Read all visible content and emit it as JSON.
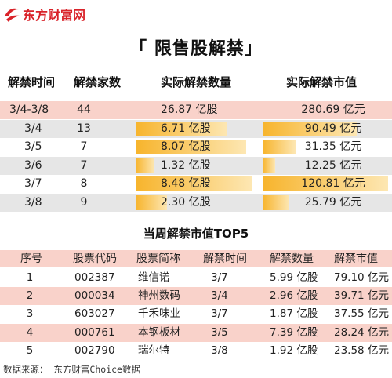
{
  "brand": {
    "name": "东方财富网"
  },
  "title": "「 限售股解禁」",
  "table1": {
    "headers": [
      "解禁时间",
      "解禁家数",
      "实际解禁数量",
      "实际解禁市值"
    ],
    "rows": [
      {
        "date": "3/4-3/8",
        "count": "44",
        "shares": "26.87 亿股",
        "value": "280.69 亿元",
        "shares_fill": 0.0,
        "value_fill": 0.0
      },
      {
        "date": "3/4",
        "count": "13",
        "shares": "6.71 亿股",
        "value": "90.49 亿元",
        "shares_fill": 0.79,
        "value_fill": 0.75
      },
      {
        "date": "3/5",
        "count": "7",
        "shares": "8.07 亿股",
        "value": "31.35 亿元",
        "shares_fill": 0.95,
        "value_fill": 0.26
      },
      {
        "date": "3/6",
        "count": "7",
        "shares": "1.32 亿股",
        "value": "12.25 亿元",
        "shares_fill": 0.16,
        "value_fill": 0.1
      },
      {
        "date": "3/7",
        "count": "8",
        "shares": "8.48 亿股",
        "value": "120.81 亿元",
        "shares_fill": 1.0,
        "value_fill": 1.0
      },
      {
        "date": "3/8",
        "count": "9",
        "shares": "2.30 亿股",
        "value": "25.79 亿元",
        "shares_fill": 0.27,
        "value_fill": 0.21
      }
    ]
  },
  "table2": {
    "title": "当周解禁市值TOP5",
    "headers": [
      "序号",
      "股票代码",
      "股票简称",
      "解禁时间",
      "解禁数量",
      "解禁市值"
    ],
    "rows": [
      {
        "no": "1",
        "code": "002387",
        "name": "维信诺",
        "date": "3/7",
        "shares": "5.99 亿股",
        "value": "79.10 亿元"
      },
      {
        "no": "2",
        "code": "000034",
        "name": "神州数码",
        "date": "3/4",
        "shares": "2.96 亿股",
        "value": "39.71 亿元"
      },
      {
        "no": "3",
        "code": "603027",
        "name": "千禾味业",
        "date": "3/7",
        "shares": "1.87 亿股",
        "value": "37.55 亿元"
      },
      {
        "no": "4",
        "code": "000761",
        "name": "本钢板材",
        "date": "3/5",
        "shares": "7.39 亿股",
        "value": "28.24 亿元"
      },
      {
        "no": "5",
        "code": "002790",
        "name": "瑞尔特",
        "date": "3/8",
        "shares": "1.92 亿股",
        "value": "23.58 亿元"
      }
    ]
  },
  "footer": "数据来源： 东方财富Choice数据",
  "colors": {
    "brand_red": "#d9232a",
    "row_alt": "#e6e6e6",
    "row_pink": "#f9d2ca",
    "bar": "#f7b42c"
  }
}
